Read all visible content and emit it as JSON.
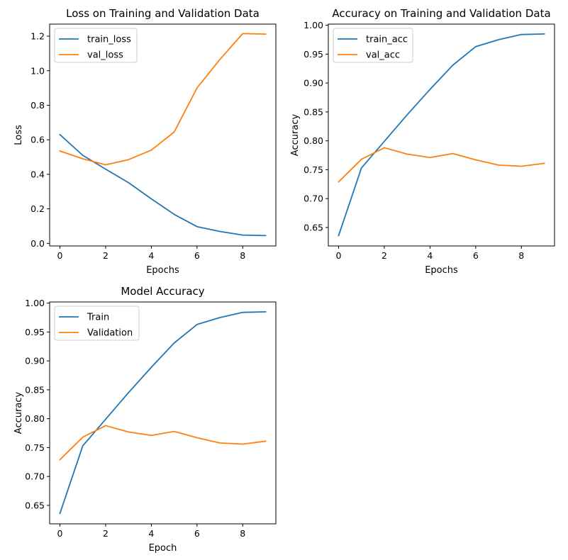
{
  "chart_data": [
    {
      "type": "line",
      "title": "Loss on Training and Validation Data",
      "xlabel": "Epochs",
      "ylabel": "Loss",
      "xlim": [
        -0.45,
        9.45
      ],
      "ylim": [
        -0.015,
        1.27
      ],
      "xticks": [
        0,
        2,
        4,
        6,
        8
      ],
      "yticks": [
        0.0,
        0.2,
        0.4,
        0.6,
        0.8,
        1.0,
        1.2
      ],
      "ytick_labels": [
        "0.0",
        "0.2",
        "0.4",
        "0.6",
        "0.8",
        "1.0",
        "1.2"
      ],
      "legend_position": "upper-left",
      "grid": false,
      "x": [
        0,
        1,
        2,
        3,
        4,
        5,
        6,
        7,
        8,
        9
      ],
      "series": [
        {
          "name": "train_loss",
          "color": "#1f77b4",
          "values": [
            0.63,
            0.51,
            0.43,
            0.352,
            0.258,
            0.168,
            0.097,
            0.069,
            0.048,
            0.045
          ]
        },
        {
          "name": "val_loss",
          "color": "#ff7f0e",
          "values": [
            0.535,
            0.49,
            0.455,
            0.485,
            0.54,
            0.645,
            0.9,
            1.065,
            1.215,
            1.212
          ]
        }
      ]
    },
    {
      "type": "line",
      "title": "Accuracy on Training and Validation Data",
      "xlabel": "Epochs",
      "ylabel": "Accuracy",
      "xlim": [
        -0.45,
        9.45
      ],
      "ylim": [
        0.618,
        1.002
      ],
      "xticks": [
        0,
        2,
        4,
        6,
        8
      ],
      "yticks": [
        0.65,
        0.7,
        0.75,
        0.8,
        0.85,
        0.9,
        0.95,
        1.0
      ],
      "ytick_labels": [
        "0.65",
        "0.70",
        "0.75",
        "0.80",
        "0.85",
        "0.90",
        "0.95",
        "1.00"
      ],
      "legend_position": "upper-left",
      "grid": false,
      "x": [
        0,
        1,
        2,
        3,
        4,
        5,
        6,
        7,
        8,
        9
      ],
      "series": [
        {
          "name": "train_acc",
          "color": "#1f77b4",
          "values": [
            0.636,
            0.753,
            0.799,
            0.845,
            0.889,
            0.931,
            0.963,
            0.975,
            0.984,
            0.985
          ]
        },
        {
          "name": "val_acc",
          "color": "#ff7f0e",
          "values": [
            0.729,
            0.768,
            0.788,
            0.777,
            0.771,
            0.778,
            0.767,
            0.758,
            0.756,
            0.761
          ]
        }
      ]
    },
    {
      "type": "line",
      "title": "Model Accuracy",
      "xlabel": "Epoch",
      "ylabel": "Accuracy",
      "xlim": [
        -0.45,
        9.45
      ],
      "ylim": [
        0.618,
        1.002
      ],
      "xticks": [
        0,
        2,
        4,
        6,
        8
      ],
      "yticks": [
        0.65,
        0.7,
        0.75,
        0.8,
        0.85,
        0.9,
        0.95,
        1.0
      ],
      "ytick_labels": [
        "0.65",
        "0.70",
        "0.75",
        "0.80",
        "0.85",
        "0.90",
        "0.95",
        "1.00"
      ],
      "legend_position": "upper-left",
      "grid": false,
      "x": [
        0,
        1,
        2,
        3,
        4,
        5,
        6,
        7,
        8,
        9
      ],
      "series": [
        {
          "name": "Train",
          "color": "#1f77b4",
          "values": [
            0.636,
            0.753,
            0.799,
            0.845,
            0.889,
            0.931,
            0.963,
            0.975,
            0.984,
            0.985
          ]
        },
        {
          "name": "Validation",
          "color": "#ff7f0e",
          "values": [
            0.729,
            0.768,
            0.788,
            0.777,
            0.771,
            0.778,
            0.767,
            0.758,
            0.756,
            0.761
          ]
        }
      ]
    }
  ]
}
